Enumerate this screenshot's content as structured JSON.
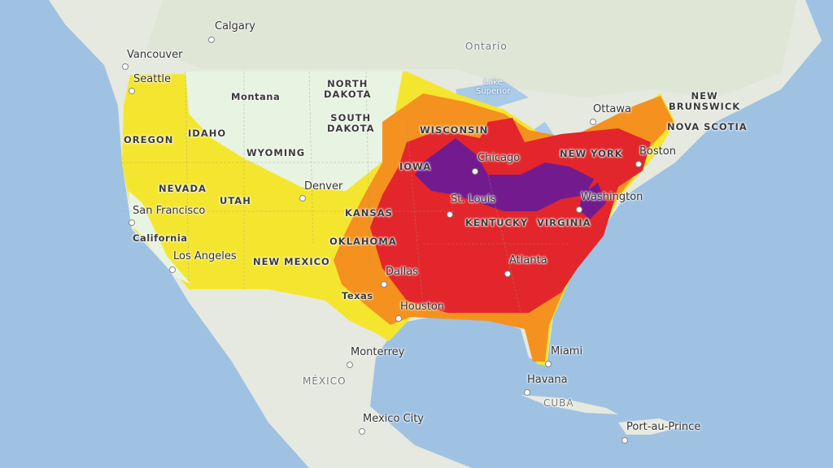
{
  "colors": {
    "ocean": "#9fc2e3",
    "land": "#e6e9df",
    "pale": "#e7f4e2",
    "yellow": "#f4e62f",
    "orange": "#f4911f",
    "red": "#e3262b",
    "purple": "#731b8e"
  },
  "cities": {
    "calgary": "Calgary",
    "vancouver": "Vancouver",
    "seattle": "Seattle",
    "ottawa": "Ottawa",
    "chicago": "Chicago",
    "boston": "Boston",
    "denver": "Denver",
    "st_louis": "St. Louis",
    "washington": "Washington",
    "san_francisco": "San Francisco",
    "los_angeles": "Los Angeles",
    "atlanta": "Atlanta",
    "dallas": "Dallas",
    "houston": "Houston",
    "monterrey": "Monterrey",
    "miami": "Miami",
    "havana": "Havana",
    "mexico_city": "Mexico City",
    "port_au_prince": "Port-au-Prince"
  },
  "regions": {
    "ontario": "Ontario",
    "lake_superior_1": "Lake",
    "lake_superior_2": "Superior",
    "new_brunswick_1": "NEW",
    "new_brunswick_2": "BRUNSWICK",
    "nova_scotia": "NOVA SCOTIA",
    "montana": "Montana",
    "north_dakota_1": "NORTH",
    "north_dakota_2": "DAKOTA",
    "south_dakota_1": "SOUTH",
    "south_dakota_2": "DAKOTA",
    "oregon": "OREGON",
    "idaho": "IDAHO",
    "wyoming": "WYOMING",
    "wisconsin": "WISCONSIN",
    "iowa": "IOWA",
    "new_york": "NEW YORK",
    "nevada": "NEVADA",
    "utah": "UTAH",
    "kansas": "KANSAS",
    "kentucky": "KENTUCKY",
    "virginia": "VIRGINIA",
    "california": "California",
    "oklahoma": "OKLAHOMA",
    "new_mexico": "NEW MEXICO",
    "texas": "Texas",
    "mexico": "MÉXICO",
    "cuba": "CUBA"
  }
}
